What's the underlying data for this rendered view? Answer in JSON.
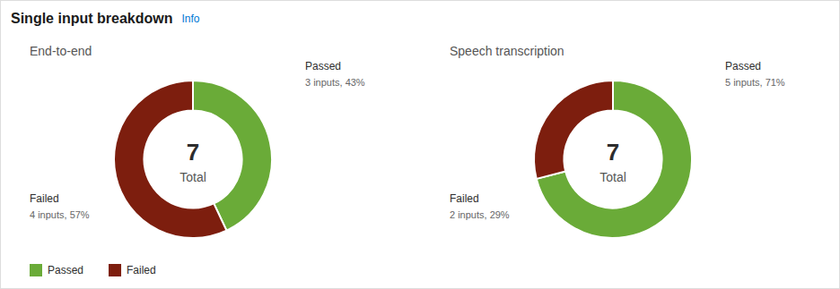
{
  "title": "Single input breakdown",
  "subtitle": "Info",
  "chart_data": [
    {
      "type": "pie",
      "title": "End-to-end",
      "categories": [
        "Passed",
        "Failed"
      ],
      "values": [
        43,
        57
      ],
      "colors": [
        "#6aab38",
        "#7d1e0e"
      ],
      "annotations": [
        "7",
        "Total",
        "3 inputs, 43%",
        "4 inputs, 57%"
      ],
      "legend": "lower left"
    },
    {
      "type": "pie",
      "title": "Speech transcription",
      "categories": [
        "Passed",
        "Failed"
      ],
      "values": [
        71,
        29
      ],
      "colors": [
        "#6aab38",
        "#7d1e0e"
      ],
      "annotations": [
        "7",
        "Total",
        "5 inputs, 71%",
        "2 inputs, 29%"
      ]
    }
  ]
}
